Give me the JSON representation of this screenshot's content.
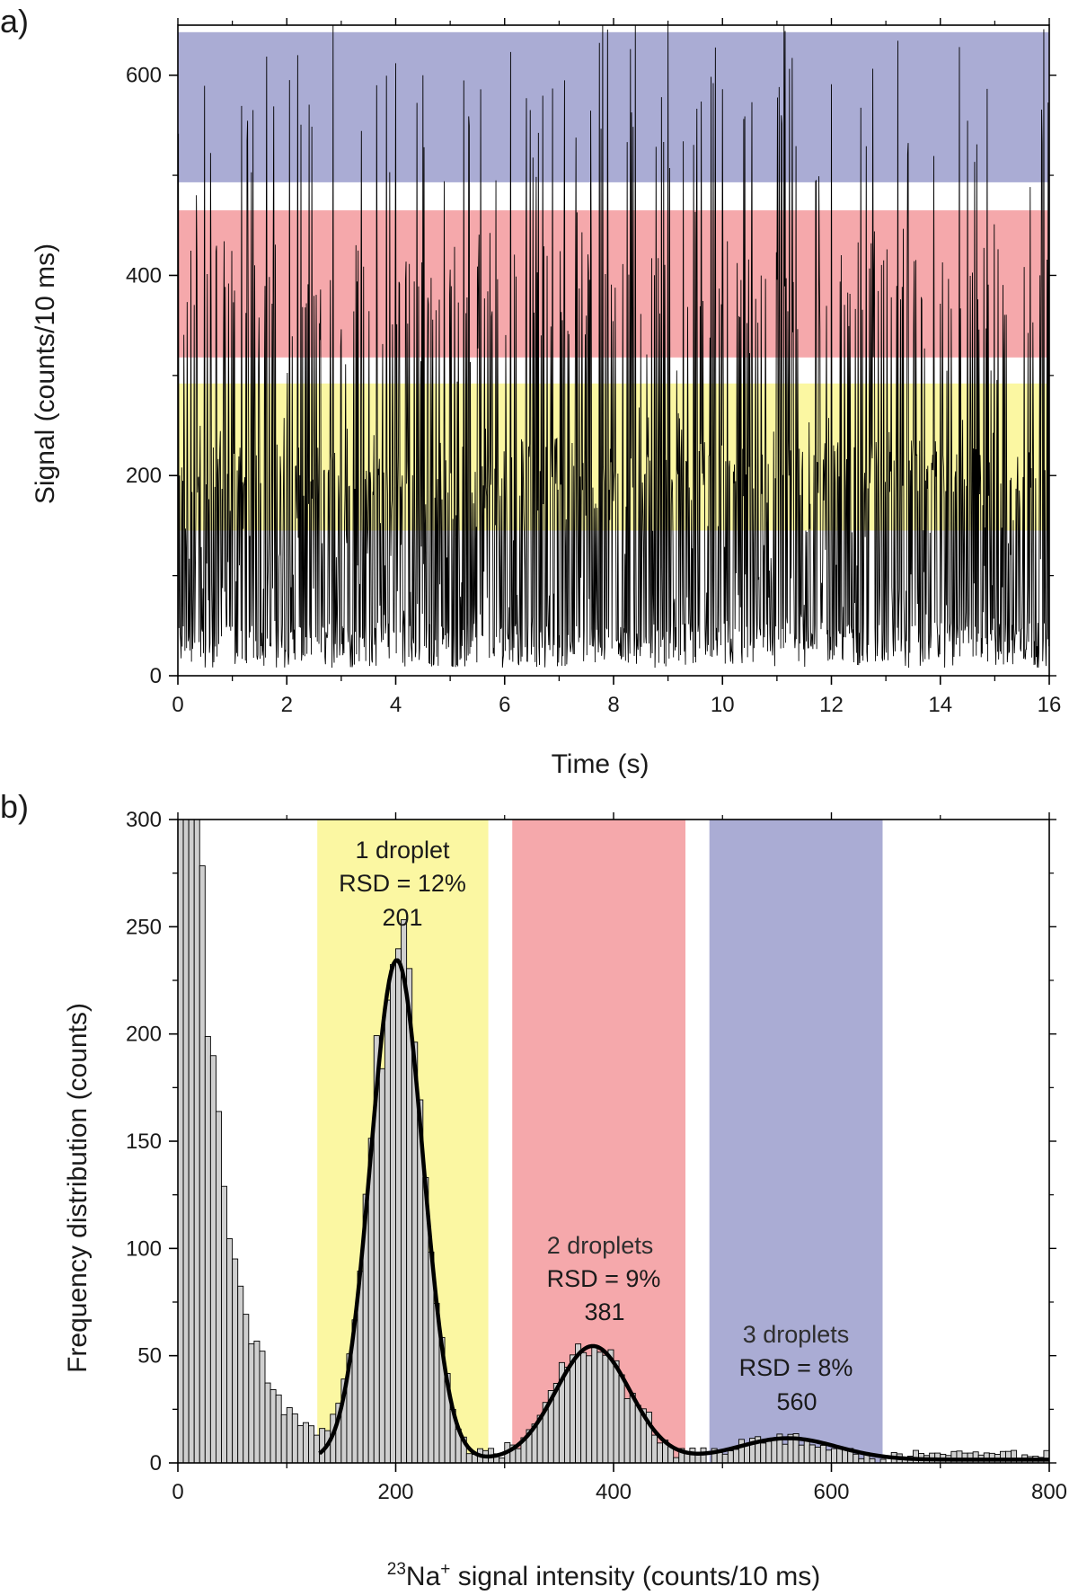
{
  "chart_data": [
    {
      "panel_label": "a)",
      "type": "line",
      "xlabel": "Time (s)",
      "ylabel": "Signal (counts/10 ms)",
      "xlim": [
        0,
        16
      ],
      "ylim": [
        0,
        650
      ],
      "xticks": [
        0,
        2,
        4,
        6,
        8,
        10,
        12,
        14,
        16
      ],
      "yticks": [
        0,
        200,
        400,
        600
      ],
      "bands": [
        {
          "name": "1 droplet",
          "from": 145,
          "to": 292,
          "color": "#fbf7a2"
        },
        {
          "name": "2 droplets",
          "from": 318,
          "to": 465,
          "color": "#f5a8ab"
        },
        {
          "name": "3 droplets",
          "from": 493,
          "to": 643,
          "color": "#aaacd4"
        }
      ],
      "series": [
        {
          "name": "23Na+ signal",
          "sampling_interval_s": 0.01,
          "description": "Transient signal trace; baseline ~0-60 counts with droplet spikes clustering near 201, 381 and 560 counts",
          "example_peaks": [
            {
              "x": 2.2,
              "y": 620
            },
            {
              "x": 2.85,
              "y": 650
            },
            {
              "x": 3.65,
              "y": 590
            },
            {
              "x": 4.0,
              "y": 612
            },
            {
              "x": 4.5,
              "y": 600
            },
            {
              "x": 6.4,
              "y": 577
            },
            {
              "x": 7.8,
              "y": 650
            },
            {
              "x": 8.4,
              "y": 650
            },
            {
              "x": 9.0,
              "y": 650
            },
            {
              "x": 10.0,
              "y": 586
            },
            {
              "x": 12.0,
              "y": 591
            },
            {
              "x": 15.9,
              "y": 646
            }
          ]
        }
      ]
    },
    {
      "panel_label": "b)",
      "type": "bar",
      "xlabel_sup": "23",
      "xlabel_main": "Na",
      "xlabel_charge": "+",
      "xlabel_rest": " signal intensity (counts/10 ms)",
      "ylabel": "Frequency distribution (counts)",
      "xlim": [
        0,
        800
      ],
      "ylim": [
        0,
        300
      ],
      "xticks": [
        0,
        200,
        400,
        600,
        800
      ],
      "yticks": [
        0,
        50,
        100,
        150,
        200,
        250,
        300
      ],
      "bin_width": 5,
      "bands": [
        {
          "name": "1 droplet",
          "from": 128,
          "to": 285,
          "color": "#fbf7a2"
        },
        {
          "name": "2 droplets",
          "from": 307,
          "to": 466,
          "color": "#f5a8ab"
        },
        {
          "name": "3 droplets",
          "from": 488,
          "to": 647,
          "color": "#aaacd4"
        }
      ],
      "gaussian_fits": [
        {
          "label": "1 droplet",
          "rsd": "RSD = 12%",
          "mean_label": "201",
          "mean": 201,
          "amplitude": 233,
          "sigma": 24
        },
        {
          "label": "2 droplets",
          "rsd": "RSD = 9%",
          "mean_label": "381",
          "mean": 381,
          "amplitude": 53,
          "sigma": 34
        },
        {
          "label": "3 droplets",
          "rsd": "RSD = 8%",
          "mean_label": "560",
          "mean": 560,
          "amplitude": 10,
          "sigma": 45
        }
      ],
      "histogram_description": "Tall background bins at 0-20 counts exceed 300 (clipped); decaying to ~10 by 110 counts, then three Gaussian-shaped droplet populations"
    }
  ]
}
